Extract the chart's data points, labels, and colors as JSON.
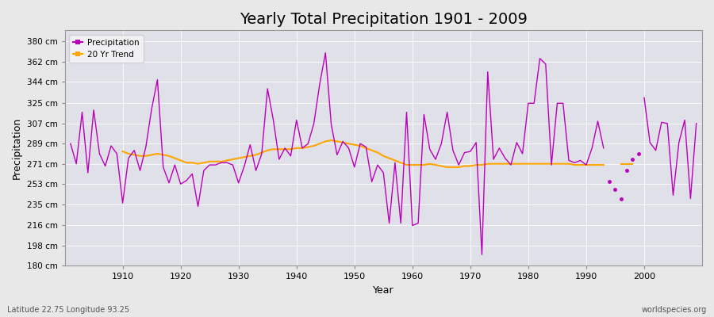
{
  "title": "Yearly Total Precipitation 1901 - 2009",
  "xlabel": "Year",
  "ylabel": "Precipitation",
  "subtitle_left": "Latitude 22.75 Longitude 93.25",
  "subtitle_right": "worldspecies.org",
  "ylim": [
    180,
    390
  ],
  "yticks": [
    180,
    198,
    216,
    235,
    253,
    271,
    289,
    307,
    325,
    344,
    362,
    380
  ],
  "ytick_labels": [
    "180 cm",
    "198 cm",
    "216 cm",
    "235 cm",
    "253 cm",
    "271 cm",
    "289 cm",
    "307 cm",
    "325 cm",
    "344 cm",
    "362 cm",
    "380 cm"
  ],
  "xlim": [
    1900,
    2010
  ],
  "precipitation_color": "#BB00BB",
  "trend_color": "#FFA500",
  "fig_bg_color": "#E8E8E8",
  "plot_bg_color": "#E0E0E8",
  "title_fontsize": 14,
  "years": [
    1901,
    1902,
    1903,
    1904,
    1905,
    1906,
    1907,
    1908,
    1909,
    1910,
    1911,
    1912,
    1913,
    1914,
    1915,
    1916,
    1917,
    1918,
    1919,
    1920,
    1921,
    1922,
    1923,
    1924,
    1925,
    1926,
    1927,
    1928,
    1929,
    1930,
    1931,
    1932,
    1933,
    1934,
    1935,
    1936,
    1937,
    1938,
    1939,
    1940,
    1941,
    1942,
    1943,
    1944,
    1945,
    1946,
    1947,
    1948,
    1949,
    1950,
    1951,
    1952,
    1953,
    1954,
    1955,
    1956,
    1957,
    1958,
    1959,
    1960,
    1961,
    1962,
    1963,
    1964,
    1965,
    1966,
    1967,
    1968,
    1969,
    1970,
    1971,
    1972,
    1973,
    1974,
    1975,
    1976,
    1977,
    1978,
    1979,
    1980,
    1981,
    1982,
    1983,
    1984,
    1985,
    1986,
    1987,
    1988,
    1989,
    1990,
    1991,
    1992,
    1993,
    1994,
    1995,
    1996,
    1997,
    1998,
    1999,
    2000,
    2001,
    2002,
    2003,
    2004,
    2005,
    2006,
    2007,
    2008,
    2009
  ],
  "precip": [
    289,
    271,
    317,
    263,
    319,
    280,
    269,
    287,
    280,
    236,
    276,
    283,
    265,
    286,
    320,
    346,
    268,
    254,
    270,
    253,
    256,
    262,
    233,
    265,
    270,
    270,
    272,
    272,
    270,
    254,
    269,
    288,
    265,
    280,
    338,
    310,
    275,
    285,
    278,
    310,
    285,
    289,
    307,
    342,
    370,
    306,
    279,
    291,
    285,
    268,
    289,
    286,
    255,
    270,
    263,
    218,
    272,
    218,
    317,
    216,
    218,
    315,
    284,
    275,
    289,
    317,
    283,
    270,
    281,
    282,
    290,
    190,
    353,
    275,
    285,
    276,
    270,
    290,
    280,
    325,
    325,
    365,
    360,
    270,
    325,
    325,
    274,
    272,
    274,
    270,
    285,
    309,
    285,
    255,
    248,
    240,
    265,
    275,
    280,
    330,
    290,
    283,
    308,
    307,
    243,
    290,
    310,
    240,
    307
  ],
  "seg1_end_year": 1993,
  "seg2_start_year": 2000,
  "iso1_years": [
    1994,
    1995
  ],
  "iso1_precip": [
    255,
    248
  ],
  "iso2_years": [
    1996,
    1997
  ],
  "iso2_precip": [
    240,
    265
  ],
  "iso3_years": [
    1998,
    1999
  ],
  "iso3_precip": [
    275,
    280
  ],
  "trend_seg1_end": 1993,
  "trend_seg2_years": [
    1996,
    1997,
    1998
  ],
  "trend_seg2_vals": [
    271,
    271,
    271
  ],
  "trend_years": [
    1910,
    1911,
    1912,
    1913,
    1914,
    1915,
    1916,
    1917,
    1918,
    1919,
    1920,
    1921,
    1922,
    1923,
    1924,
    1925,
    1926,
    1927,
    1928,
    1929,
    1930,
    1931,
    1932,
    1933,
    1934,
    1935,
    1936,
    1937,
    1938,
    1939,
    1940,
    1941,
    1942,
    1943,
    1944,
    1945,
    1946,
    1947,
    1948,
    1949,
    1950,
    1951,
    1952,
    1953,
    1954,
    1955,
    1956,
    1957,
    1958,
    1959,
    1960,
    1961,
    1962,
    1963,
    1964,
    1965,
    1966,
    1967,
    1968,
    1969,
    1970,
    1971,
    1972,
    1973,
    1974,
    1975,
    1976,
    1977,
    1978,
    1979,
    1980,
    1981,
    1982,
    1983,
    1984,
    1985,
    1986,
    1987,
    1988,
    1989,
    1990,
    1991,
    1992,
    1993
  ],
  "trend_values": [
    282,
    280,
    279,
    278,
    278,
    279,
    280,
    279,
    278,
    276,
    274,
    272,
    272,
    271,
    272,
    273,
    273,
    273,
    274,
    275,
    276,
    277,
    278,
    279,
    281,
    283,
    284,
    284,
    284,
    284,
    285,
    285,
    286,
    287,
    289,
    291,
    292,
    291,
    290,
    289,
    288,
    287,
    285,
    283,
    281,
    278,
    276,
    274,
    272,
    270,
    270,
    270,
    270,
    271,
    270,
    269,
    268,
    268,
    268,
    269,
    269,
    270,
    270,
    271,
    271,
    271,
    271,
    271,
    271,
    271,
    271,
    271,
    271,
    271,
    271,
    271,
    271,
    271,
    270,
    270,
    270,
    270,
    270,
    270
  ]
}
